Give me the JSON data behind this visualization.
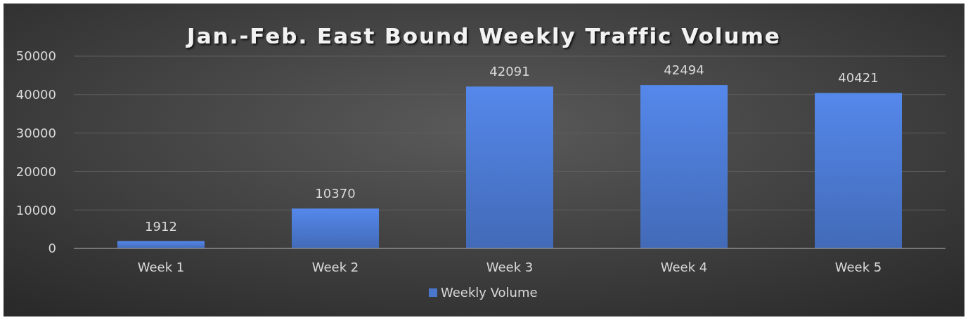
{
  "chart_data": {
    "type": "bar",
    "title": "Jan.-Feb. East Bound Weekly Traffic Volume",
    "categories": [
      "Week 1",
      "Week 2",
      "Week 3",
      "Week 4",
      "Week 5"
    ],
    "series": [
      {
        "name": "Weekly Volume",
        "color": "#4a76cc",
        "values": [
          1912,
          10370,
          42091,
          42494,
          40421
        ]
      }
    ],
    "ylim": [
      0,
      50000
    ],
    "yticks": [
      0,
      10000,
      20000,
      30000,
      40000,
      50000
    ],
    "grid": "y",
    "data_labels": true,
    "legend": "bottom"
  }
}
